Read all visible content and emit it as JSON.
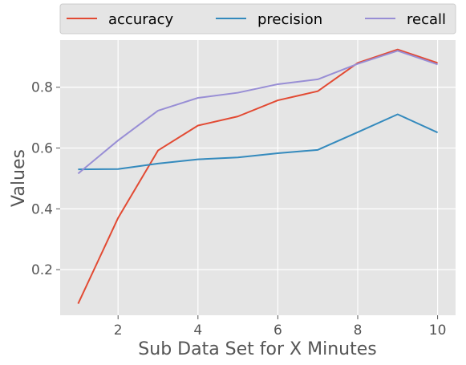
{
  "chart_data": {
    "type": "line",
    "title": "",
    "xlabel": "Sub Data Set for X Minutes",
    "ylabel": "Values",
    "x": [
      1,
      2,
      3,
      4,
      5,
      6,
      7,
      8,
      9,
      10
    ],
    "xlim": [
      0.55,
      10.45
    ],
    "ylim": [
      0.05,
      0.955
    ],
    "xticks": [
      2,
      4,
      6,
      8,
      10
    ],
    "yticks": [
      0.2,
      0.4,
      0.6,
      0.8
    ],
    "xtick_labels": [
      "2",
      "4",
      "6",
      "8",
      "10"
    ],
    "ytick_labels": [
      "0.2",
      "0.4",
      "0.6",
      "0.8"
    ],
    "grid": true,
    "legend_position": "top",
    "series": [
      {
        "name": "accuracy",
        "color": "#E24A33",
        "values": [
          0.088,
          0.37,
          0.592,
          0.674,
          0.704,
          0.757,
          0.787,
          0.88,
          0.924,
          0.88
        ]
      },
      {
        "name": "precision",
        "color": "#348ABD",
        "values": [
          0.53,
          0.531,
          0.549,
          0.563,
          0.569,
          0.583,
          0.594,
          0.652,
          0.711,
          0.651
        ]
      },
      {
        "name": "recall",
        "color": "#988ED5",
        "values": [
          0.516,
          0.625,
          0.723,
          0.765,
          0.782,
          0.81,
          0.826,
          0.877,
          0.92,
          0.875
        ]
      }
    ]
  }
}
